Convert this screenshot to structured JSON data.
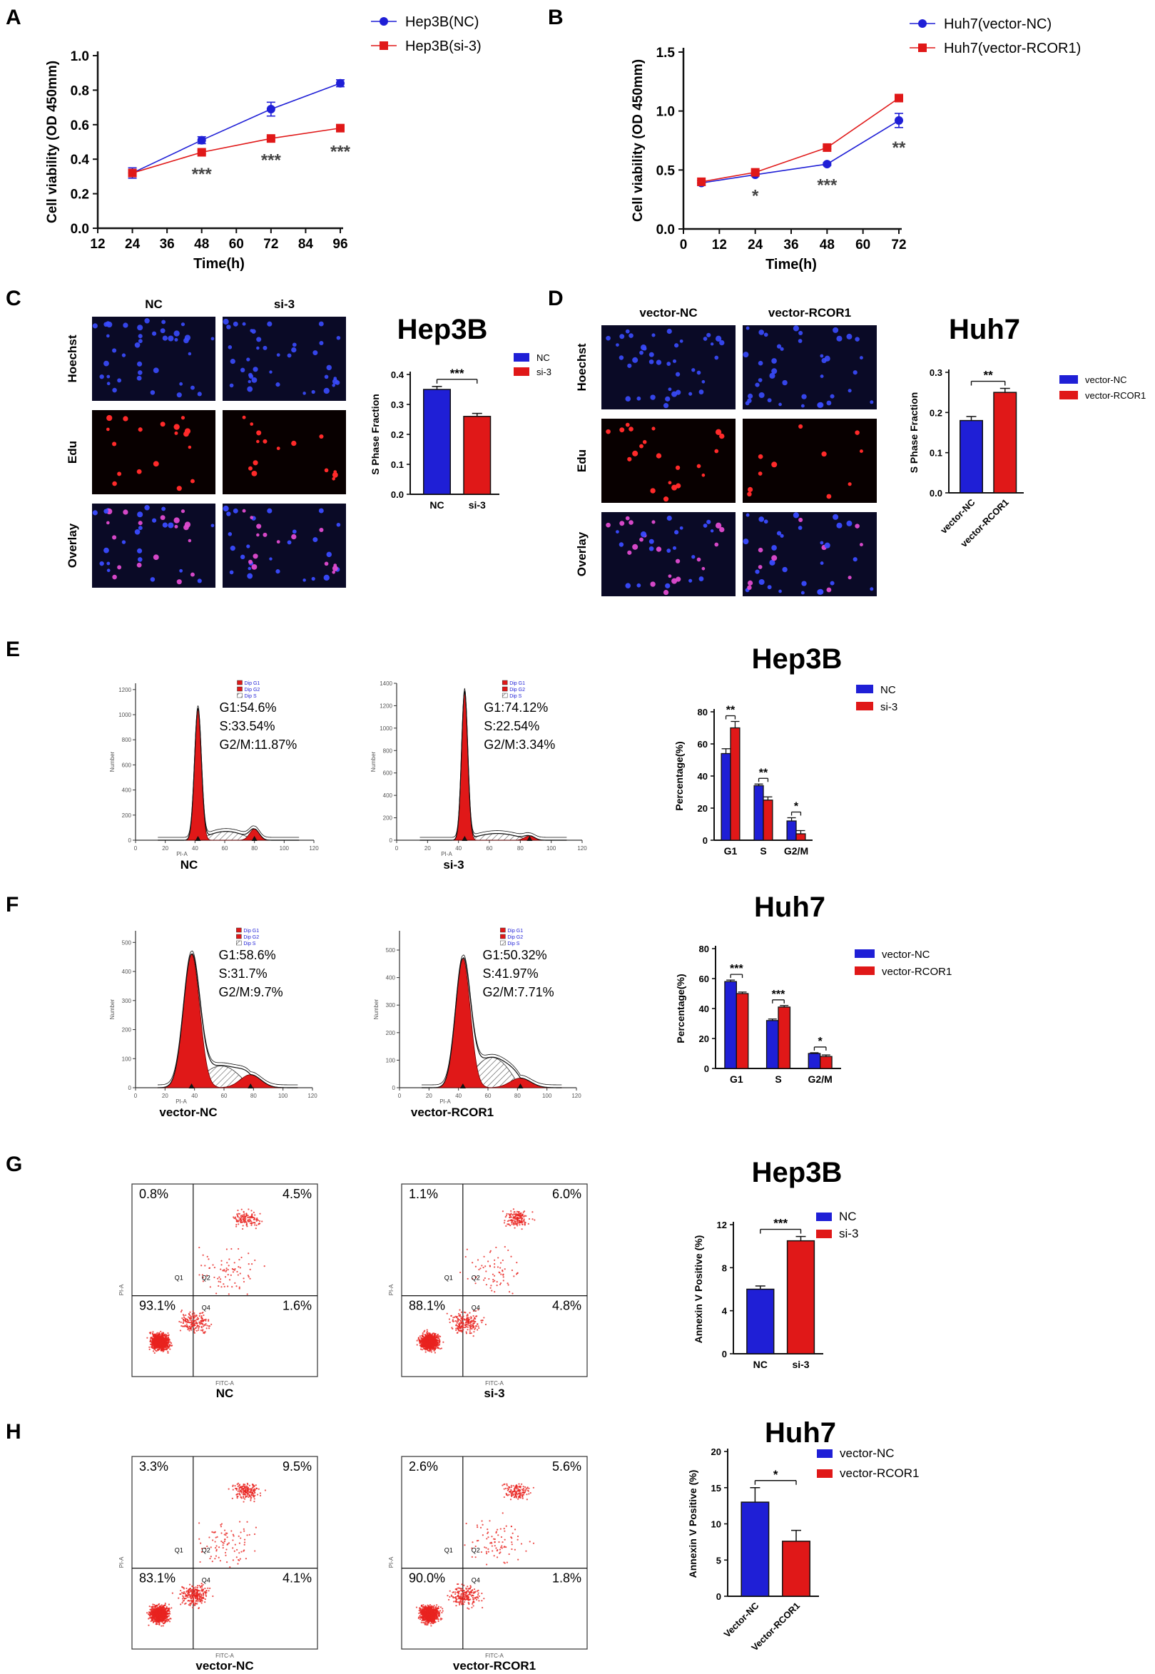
{
  "colors": {
    "nc": "#1f1fd6",
    "treat": "#e01818",
    "axis": "#111111",
    "gray": "#555555",
    "fluoBg": "#0a0a26"
  },
  "panels": {
    "A": "A",
    "B": "B",
    "C": "C",
    "D": "D",
    "E": "E",
    "F": "F",
    "G": "G",
    "H": "H"
  },
  "charts": {
    "C": "Hep3B",
    "D": "Huh7",
    "E": "Hep3B",
    "F": "Huh7",
    "G": "Hep3B",
    "H": "Huh7"
  },
  "micro": {
    "C": {
      "cols": [
        "NC",
        "si-3"
      ],
      "rows": [
        "Hoechst",
        "Edu",
        "Overlay"
      ]
    },
    "D": {
      "cols": [
        "vector-NC",
        "vector-RCOR1"
      ],
      "rows": [
        "Hoechst",
        "Edu",
        "Overlay"
      ]
    }
  },
  "flow": [
    {
      "id": "E1",
      "label": "NC",
      "stats": [
        "G1:54.6%",
        "S:33.54%",
        "G2/M:11.87%"
      ],
      "legend": [
        "Dip G1",
        "Dip G2",
        "Dip S"
      ],
      "ylabel": "Number",
      "xlabel": "PI-A"
    },
    {
      "id": "E2",
      "label": "si-3",
      "stats": [
        "G1:74.12%",
        "S:22.54%",
        "G2/M:3.34%"
      ],
      "legend": [
        "Dip G1",
        "Dip G2",
        "Dip S"
      ],
      "ylabel": "Number",
      "xlabel": "PI-A"
    },
    {
      "id": "F1",
      "label": "vector-NC",
      "stats": [
        "G1:58.6%",
        "S:31.7%",
        "G2/M:9.7%"
      ],
      "legend": [
        "Dip G1",
        "Dip G2",
        "Dip S"
      ],
      "ylabel": "Number",
      "xlabel": "PI-A"
    },
    {
      "id": "F2",
      "label": "vector-RCOR1",
      "stats": [
        "G1:50.32%",
        "S:41.97%",
        "G2/M:7.71%"
      ],
      "legend": [
        "Dip G1",
        "Dip G2",
        "Dip S"
      ],
      "ylabel": "Number",
      "xlabel": "PI-A"
    }
  ],
  "scatter": [
    {
      "id": "G1",
      "label": "NC",
      "q": [
        "0.8%",
        "4.5%",
        "93.1%",
        "1.6%"
      ],
      "gates": [
        "Q1",
        "Q2",
        "Q4"
      ],
      "xlabel": "FITC-A",
      "ylabel": "PI-A"
    },
    {
      "id": "G2",
      "label": "si-3",
      "q": [
        "1.1%",
        "6.0%",
        "88.1%",
        "4.8%"
      ],
      "gates": [
        "Q1",
        "Q2",
        "Q4"
      ],
      "xlabel": "FITC-A",
      "ylabel": "PI-A"
    },
    {
      "id": "H1",
      "label": "vector-NC",
      "q": [
        "3.3%",
        "9.5%",
        "83.1%",
        "4.1%"
      ],
      "gates": [
        "Q1",
        "Q2",
        "Q4"
      ],
      "xlabel": "FITC-A",
      "ylabel": "PI-A"
    },
    {
      "id": "H2",
      "label": "vector-RCOR1",
      "q": [
        "2.6%",
        "5.6%",
        "90.0%",
        "1.8%"
      ],
      "gates": [
        "Q1",
        "Q2",
        "Q4"
      ],
      "xlabel": "FITC-A",
      "ylabel": "PI-A"
    }
  ],
  "chart_data": [
    {
      "id": "A",
      "type": "line",
      "x": [
        24,
        48,
        72,
        96
      ],
      "xlabel": "Time(h)",
      "ylabel": "Cell viability (OD 450mm)",
      "xlim": [
        12,
        96
      ],
      "ylim": [
        0,
        1.0
      ],
      "xticks": [
        12,
        24,
        36,
        48,
        60,
        72,
        84,
        96
      ],
      "yticks": [
        0.0,
        0.2,
        0.4,
        0.6,
        0.8,
        1.0
      ],
      "series": [
        {
          "name": "Hep3B(NC)",
          "values": [
            0.32,
            0.51,
            0.69,
            0.84
          ],
          "err": [
            0.03,
            0.02,
            0.04,
            0.02
          ]
        },
        {
          "name": "Hep3B(si-3)",
          "values": [
            0.32,
            0.44,
            0.52,
            0.58
          ],
          "err": [
            0.02,
            0.01,
            0.01,
            0.02
          ]
        }
      ],
      "sig": [
        {
          "x": 48,
          "text": "***"
        },
        {
          "x": 72,
          "text": "***"
        },
        {
          "x": 96,
          "text": "***"
        }
      ],
      "legend": "top-right"
    },
    {
      "id": "B",
      "type": "line",
      "x": [
        6,
        24,
        48,
        72
      ],
      "xlabel": "Time(h)",
      "ylabel": "Cell viability (OD 450mm)",
      "xlim": [
        0,
        72
      ],
      "ylim": [
        0,
        1.5
      ],
      "xticks": [
        0,
        12,
        24,
        36,
        48,
        60,
        72
      ],
      "yticks": [
        0.0,
        0.5,
        1.0,
        1.5
      ],
      "series": [
        {
          "name": "Huh7(vector-NC)",
          "values": [
            0.39,
            0.46,
            0.55,
            0.92
          ],
          "err": [
            0.02,
            0.01,
            0.01,
            0.06
          ]
        },
        {
          "name": "Huh7(vector-RCOR1)",
          "values": [
            0.4,
            0.48,
            0.69,
            1.11
          ],
          "err": [
            0.01,
            0.01,
            0.01,
            0.02
          ]
        }
      ],
      "sig": [
        {
          "x": 24,
          "text": "*"
        },
        {
          "x": 48,
          "text": "***"
        },
        {
          "x": 72,
          "text": "**"
        }
      ],
      "legend": "top-right"
    },
    {
      "id": "C",
      "type": "bar",
      "title": "Hep3B",
      "categories": [
        "NC",
        "si-3"
      ],
      "values": [
        0.35,
        0.26
      ],
      "err": [
        0.01,
        0.01
      ],
      "ylabel": "S Phase Fraction",
      "ylim": [
        0,
        0.4
      ],
      "yticks": [
        0.0,
        0.1,
        0.2,
        0.3,
        0.4
      ],
      "ytickfmt": 1,
      "legend_names": [
        "NC",
        "si-3"
      ],
      "sig": [
        {
          "from": 0,
          "to": 1,
          "text": "***"
        }
      ]
    },
    {
      "id": "D",
      "type": "bar",
      "title": "Huh7",
      "categories": [
        "vector-NC",
        "vector-RCOR1"
      ],
      "values": [
        0.18,
        0.25
      ],
      "err": [
        0.01,
        0.01
      ],
      "ylabel": "S Phase Fraction",
      "ylim": [
        0,
        0.3
      ],
      "yticks": [
        0.0,
        0.1,
        0.2,
        0.3
      ],
      "ytickfmt": 1,
      "legend_names": [
        "vector-NC",
        "vector-RCOR1"
      ],
      "rotate": true,
      "sig": [
        {
          "from": 0,
          "to": 1,
          "text": "**"
        }
      ]
    },
    {
      "id": "E",
      "type": "bar",
      "title": "Hep3B",
      "categories": [
        "G1",
        "S",
        "G2/M"
      ],
      "ylabel": "Percentage(%)",
      "ylim": [
        0,
        80
      ],
      "yticks": [
        0,
        20,
        40,
        60,
        80
      ],
      "ytickfmt": 0,
      "series": [
        {
          "name": "NC",
          "values": [
            54,
            34,
            12
          ],
          "err": [
            3,
            1,
            2
          ]
        },
        {
          "name": "si-3",
          "values": [
            70,
            25,
            4
          ],
          "err": [
            4,
            2,
            2
          ]
        }
      ],
      "sig": [
        {
          "cat": 0,
          "text": "**"
        },
        {
          "cat": 1,
          "text": "**"
        },
        {
          "cat": 2,
          "text": "*"
        }
      ]
    },
    {
      "id": "F",
      "type": "bar",
      "title": "Huh7",
      "categories": [
        "G1",
        "S",
        "G2/M"
      ],
      "ylabel": "Percentage(%)",
      "ylim": [
        0,
        80
      ],
      "yticks": [
        0,
        20,
        40,
        60,
        80
      ],
      "ytickfmt": 0,
      "series": [
        {
          "name": "vector-NC",
          "values": [
            58,
            32,
            10
          ],
          "err": [
            1,
            1,
            0.5
          ]
        },
        {
          "name": "vector-RCOR1",
          "values": [
            50,
            41,
            8
          ],
          "err": [
            1,
            1,
            1
          ]
        }
      ],
      "sig": [
        {
          "cat": 0,
          "text": "***"
        },
        {
          "cat": 1,
          "text": "***"
        },
        {
          "cat": 2,
          "text": "*"
        }
      ]
    },
    {
      "id": "G",
      "type": "bar",
      "title": "Hep3B",
      "categories": [
        "NC",
        "si-3"
      ],
      "values": [
        6.0,
        10.5
      ],
      "err": [
        0.3,
        0.4
      ],
      "ylabel": "Annexin V Positive (%)",
      "ylim": [
        0,
        12
      ],
      "yticks": [
        0,
        4,
        8,
        12
      ],
      "ytickfmt": 0,
      "legend_names": [
        "NC",
        "si-3"
      ],
      "sig": [
        {
          "from": 0,
          "to": 1,
          "text": "***"
        }
      ]
    },
    {
      "id": "H",
      "type": "bar",
      "title": "Huh7",
      "categories": [
        "Vector-NC",
        "Vector-RCOR1"
      ],
      "values": [
        13.0,
        7.6
      ],
      "err": [
        2.0,
        1.5
      ],
      "ylabel": "Annexin V Positive (%)",
      "ylim": [
        0,
        20
      ],
      "yticks": [
        0,
        5,
        10,
        15,
        20
      ],
      "ytickfmt": 0,
      "legend_names": [
        "vector-NC",
        "vector-RCOR1"
      ],
      "rotate": true,
      "sig": [
        {
          "from": 0,
          "to": 1,
          "text": "*"
        }
      ]
    }
  ]
}
